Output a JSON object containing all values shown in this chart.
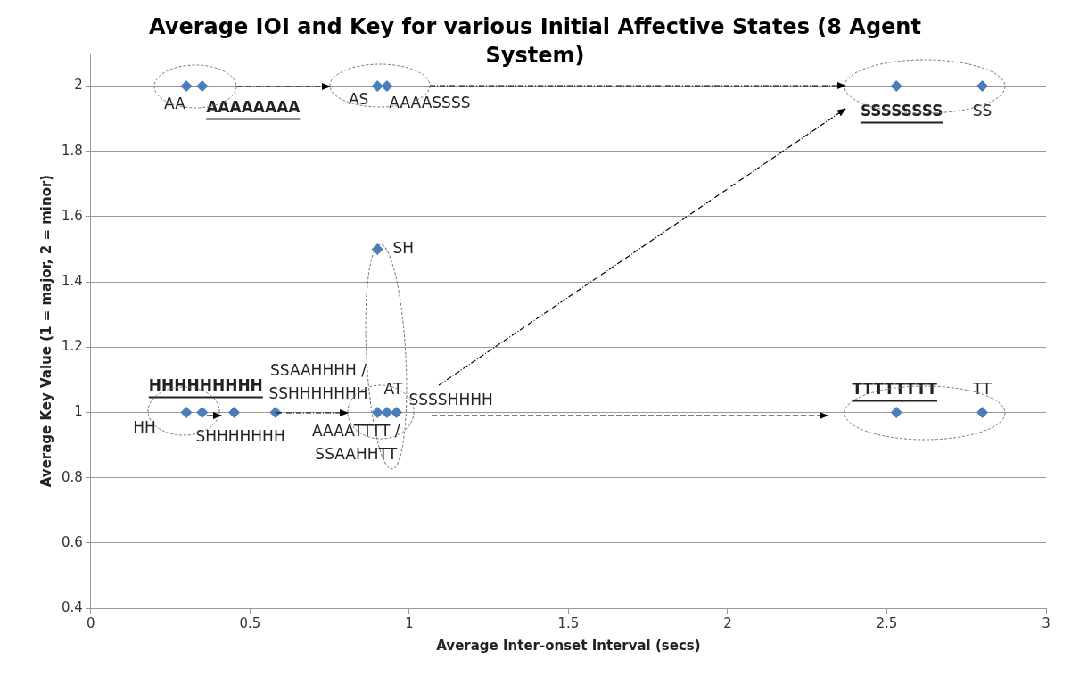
{
  "chart_data": {
    "type": "scatter",
    "title": "Average IOI and Key for various Initial Affective States (8 Agent System)",
    "xlabel": "Average Inter-onset Interval (secs)",
    "ylabel": "Average Key Value (1 = major, 2 = minor)",
    "x": [
      0.3,
      0.35,
      0.9,
      0.93,
      2.53,
      2.8,
      0.9,
      0.3,
      0.35,
      0.45,
      0.58,
      0.9,
      0.93,
      0.96,
      2.53,
      2.8
    ],
    "values": [
      2,
      2,
      2,
      2,
      2,
      2,
      1.5,
      1,
      1,
      1,
      1,
      1,
      1,
      1,
      1,
      1
    ],
    "color": "#4a7ebb",
    "marker": "diamond",
    "xlim": [
      0,
      3
    ],
    "xticks": [
      0,
      0.5,
      1,
      1.5,
      2,
      2.5,
      3
    ],
    "ylim": [
      0.4,
      2.1
    ],
    "yticks": [
      0.4,
      0.6,
      0.8,
      1,
      1.2,
      1.4,
      1.6,
      1.8,
      2
    ],
    "grid": "y",
    "legend": false,
    "annotations": [
      {
        "text": "AA",
        "x": 0.3,
        "y": 2
      },
      {
        "text": "AAAAAAAA",
        "x": 0.35,
        "y": 2
      },
      {
        "text": "AS",
        "x": 0.9,
        "y": 2
      },
      {
        "text": "AAAASSSS",
        "x": 0.93,
        "y": 2
      },
      {
        "text": "SSSSSSSS",
        "x": 2.53,
        "y": 2
      },
      {
        "text": "SS",
        "x": 2.8,
        "y": 2
      },
      {
        "text": "SH",
        "x": 0.9,
        "y": 1.5
      },
      {
        "text": "HHHHHHHHH",
        "x": 0.35,
        "y": 1
      },
      {
        "text": "HH",
        "x": 0.3,
        "y": 1
      },
      {
        "text": "SHHHHHHH",
        "x": 0.45,
        "y": 1
      },
      {
        "text": "SSAAHHHH /\nSSHHHHHHH",
        "x": 0.58,
        "y": 1
      },
      {
        "text": "AT",
        "x": 0.93,
        "y": 1
      },
      {
        "text": "SSSSHHHH",
        "x": 0.96,
        "y": 1
      },
      {
        "text": "AAAATTTT /\nSSAAHHTT",
        "x": 0.9,
        "y": 1
      },
      {
        "text": "TTTTTTTT",
        "x": 2.53,
        "y": 1
      },
      {
        "text": "TT",
        "x": 2.8,
        "y": 1
      }
    ]
  }
}
